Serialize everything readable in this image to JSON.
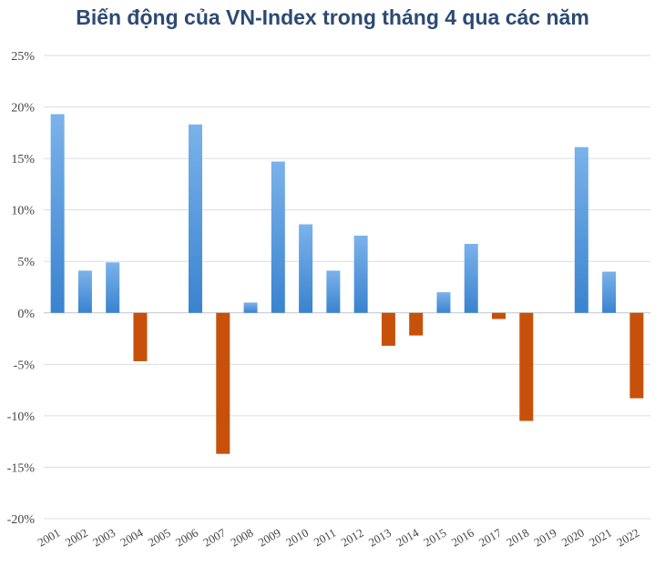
{
  "title": "Biến động của VN-Index trong tháng 4 qua các năm",
  "colors": {
    "positive_top": "#7bb2ea",
    "positive_bottom": "#3a83cf",
    "negative": "#c7510a",
    "grid": "#d9dde3",
    "axis": "#bfc5cc"
  },
  "chart_data": {
    "type": "bar",
    "title": "Biến động của VN-Index trong tháng 4 qua các năm",
    "xlabel": "",
    "ylabel": "",
    "categories": [
      "2001",
      "2002",
      "2003",
      "2004",
      "2005",
      "2006",
      "2007",
      "2008",
      "2009",
      "2010",
      "2011",
      "2012",
      "2013",
      "2014",
      "2015",
      "2016",
      "2017",
      "2018",
      "2019",
      "2020",
      "2021",
      "2022"
    ],
    "values": [
      19.3,
      4.1,
      4.9,
      -4.7,
      0,
      18.3,
      -13.7,
      1.0,
      14.7,
      8.6,
      4.1,
      7.5,
      -3.2,
      -2.2,
      2.0,
      6.7,
      -0.6,
      -10.5,
      0,
      16.1,
      4.0,
      -8.3
    ],
    "ylim": [
      -20,
      25
    ],
    "yticks": [
      25,
      20,
      15,
      10,
      5,
      0,
      -5,
      -10,
      -15,
      -20
    ],
    "ytick_labels": [
      "25%",
      "20%",
      "15%",
      "10%",
      "5%",
      "0%",
      "-5%",
      "-10%",
      "-15%",
      "-20%"
    ],
    "grid": true,
    "legend": "none"
  }
}
